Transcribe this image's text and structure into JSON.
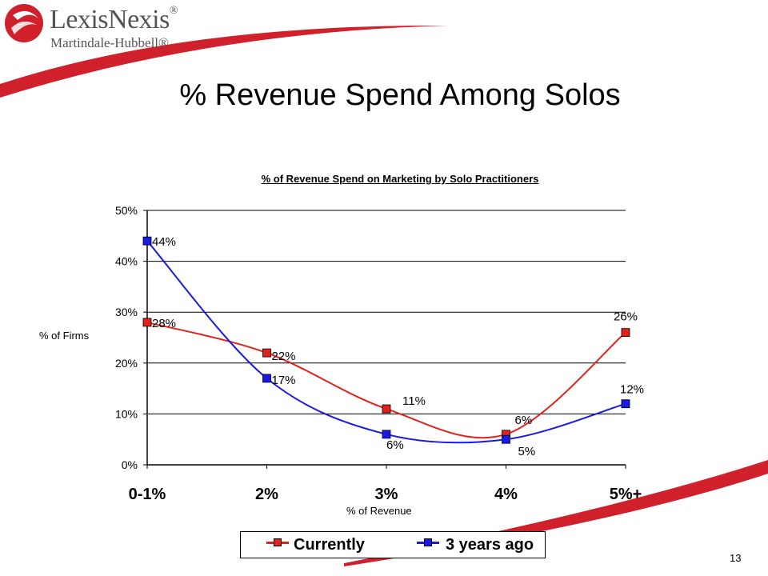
{
  "brand": {
    "name": "LexisNexis",
    "trademark": "®",
    "subtitle": "Martindale-Hubbell®",
    "logo_color": "#d0202b"
  },
  "slide": {
    "title": "% Revenue Spend Among Solos",
    "page_number": "13"
  },
  "chart_data": {
    "type": "line",
    "title": "% of Revenue Spend on Marketing by Solo Practitioners",
    "xlabel": "% of Revenue",
    "ylabel": "% of Firms",
    "categories": [
      "0-1%",
      "2%",
      "3%",
      "4%",
      "5%+"
    ],
    "ylim": [
      0,
      50
    ],
    "yticks": [
      "0%",
      "10%",
      "20%",
      "30%",
      "40%",
      "50%"
    ],
    "grid": true,
    "legend_position": "bottom",
    "series": [
      {
        "name": "Currently",
        "values": [
          28,
          22,
          11,
          6,
          26
        ],
        "labels": [
          "28%",
          "22%",
          "11%",
          "6%",
          "26%"
        ],
        "color": "#e0221b"
      },
      {
        "name": "3 years ago",
        "values": [
          44,
          17,
          6,
          5,
          12
        ],
        "labels": [
          "44%",
          "17%",
          "6%",
          "5%",
          "12%"
        ],
        "color": "#1a1ae6"
      }
    ]
  }
}
